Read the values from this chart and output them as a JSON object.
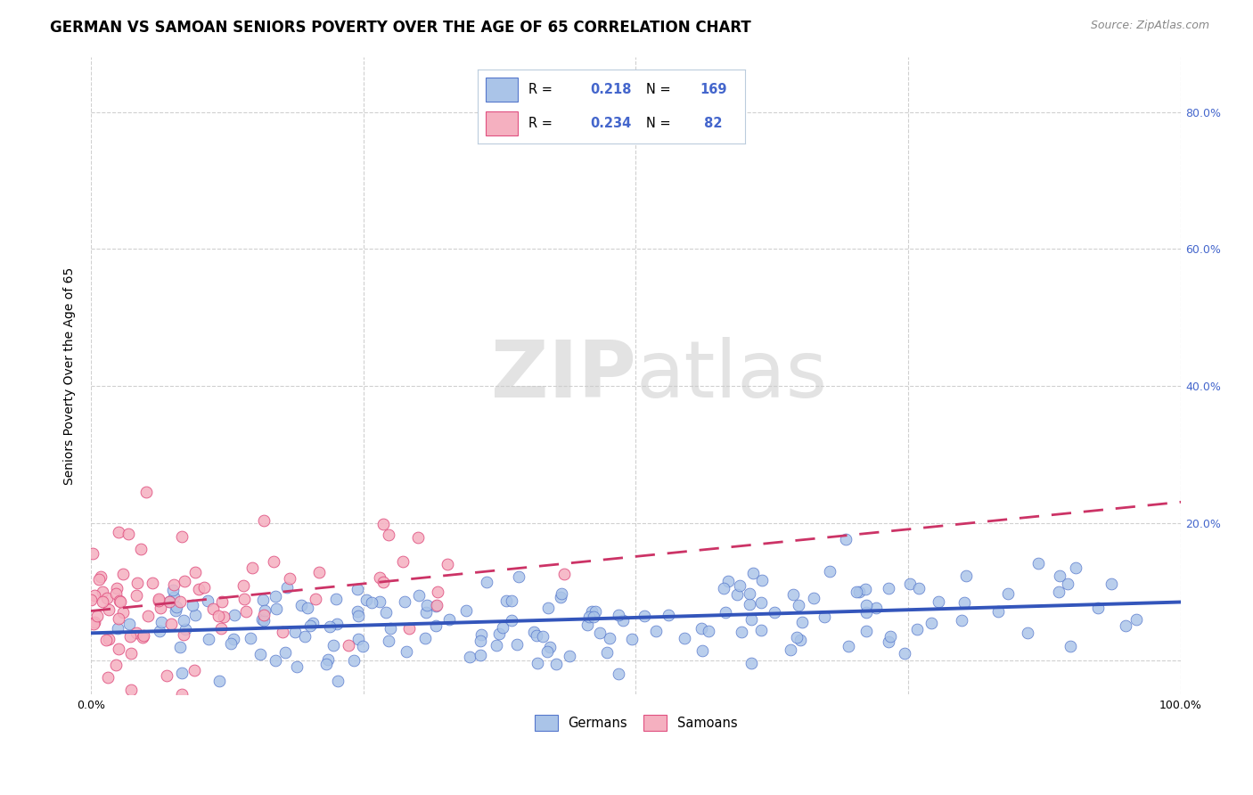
{
  "title": "GERMAN VS SAMOAN SENIORS POVERTY OVER THE AGE OF 65 CORRELATION CHART",
  "source": "Source: ZipAtlas.com",
  "ylabel": "Seniors Poverty Over the Age of 65",
  "xlim": [
    0.0,
    1.0
  ],
  "ylim": [
    -0.05,
    0.88
  ],
  "german_R": 0.218,
  "german_N": 169,
  "samoan_R": 0.234,
  "samoan_N": 82,
  "german_color": "#aac4e8",
  "german_edge_color": "#5577cc",
  "german_line_color": "#3355bb",
  "samoan_color": "#f5b0c0",
  "samoan_edge_color": "#e05080",
  "samoan_line_color": "#cc3366",
  "right_tick_color": "#4466cc",
  "background_color": "#ffffff",
  "grid_color": "#d0d0d0",
  "watermark": "ZIPatlas",
  "title_fontsize": 12,
  "axis_label_fontsize": 10,
  "tick_fontsize": 9,
  "ytick_positions": [
    0.0,
    0.2,
    0.4,
    0.6,
    0.8
  ],
  "ytick_labels": [
    "",
    "20.0%",
    "40.0%",
    "60.0%",
    "80.0%"
  ],
  "xticks": [
    0.0,
    0.25,
    0.5,
    0.75,
    1.0
  ],
  "legend_box_color": "#e8eef8",
  "legend_edge_color": "#aabbdd"
}
